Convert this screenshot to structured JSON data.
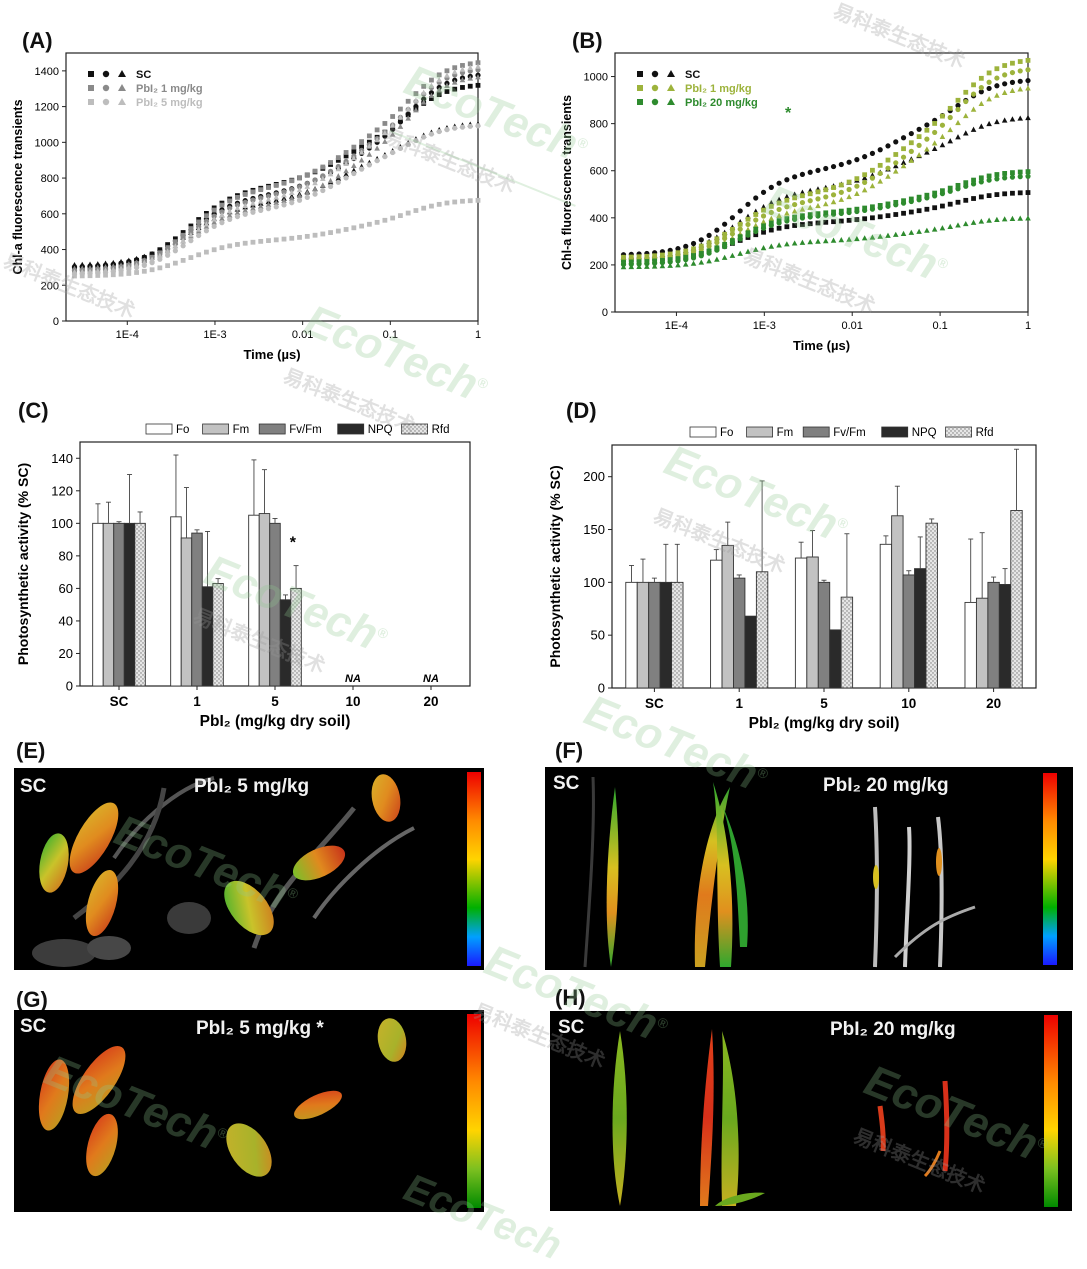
{
  "panels": {
    "A": "(A)",
    "B": "(B)",
    "C": "(C)",
    "D": "(D)",
    "E": "(E)",
    "F": "(F)",
    "G": "(G)",
    "H": "(H)"
  },
  "watermark": {
    "brand": "EcoTech",
    "reg": "®",
    "cn": "易科泰生态技术"
  },
  "chart_data": [
    {
      "id": "A",
      "type": "scatter",
      "xlabel": "Time (µs)",
      "ylabel": "Chl-a fluorescence transients",
      "xscale": "log",
      "xlim": [
        2e-05,
        1
      ],
      "ylim": [
        0,
        1500
      ],
      "xticks": [
        {
          "v": 0.0001,
          "l": "1E-4"
        },
        {
          "v": 0.001,
          "l": "1E-3"
        },
        {
          "v": 0.01,
          "l": "0.01"
        },
        {
          "v": 0.1,
          "l": "0.1"
        },
        {
          "v": 1,
          "l": "1"
        }
      ],
      "yticks": [
        0,
        200,
        400,
        600,
        800,
        1000,
        1200,
        1400
      ],
      "legend": {
        "placement": "top-left",
        "entries": [
          {
            "symbols": "■ ● ▲",
            "label": "SC",
            "color": "#111111"
          },
          {
            "symbols": "■ ● ▲",
            "label": "PbI₂ 1 mg/kg",
            "color": "#8a8a8a"
          },
          {
            "symbols": "■ ● ▲",
            "label": "PbI₂ 5 mg/kg",
            "color": "#bdbdbd"
          }
        ]
      },
      "series": [
        {
          "color": "#111111",
          "marker": "square",
          "o": 290,
          "j": 750,
          "i": 1060,
          "p": 1330
        },
        {
          "color": "#111111",
          "marker": "circle",
          "o": 300,
          "j": 700,
          "i": 1020,
          "p": 1390
        },
        {
          "color": "#111111",
          "marker": "triangle",
          "o": 310,
          "j": 660,
          "i": 950,
          "p": 1110
        },
        {
          "color": "#8a8a8a",
          "marker": "square",
          "o": 270,
          "j": 740,
          "i": 1100,
          "p": 1460
        },
        {
          "color": "#8a8a8a",
          "marker": "circle",
          "o": 280,
          "j": 690,
          "i": 1050,
          "p": 1420
        },
        {
          "color": "#8a8a8a",
          "marker": "triangle",
          "o": 290,
          "j": 640,
          "i": 990,
          "p": 1380
        },
        {
          "color": "#bdbdbd",
          "marker": "square",
          "o": 250,
          "j": 450,
          "i": 560,
          "p": 680
        },
        {
          "color": "#bdbdbd",
          "marker": "circle",
          "o": 260,
          "j": 620,
          "i": 950,
          "p": 1100
        },
        {
          "color": "#bdbdbd",
          "marker": "triangle",
          "o": 270,
          "j": 670,
          "i": 1040,
          "p": 1440
        }
      ]
    },
    {
      "id": "B",
      "type": "scatter",
      "xlabel": "Time (µs)",
      "ylabel": "Chl-a fluorescence transients",
      "xscale": "log",
      "xlim": [
        2e-05,
        1
      ],
      "ylim": [
        0,
        1100
      ],
      "xticks": [
        {
          "v": 0.0001,
          "l": "1E-4"
        },
        {
          "v": 0.001,
          "l": "1E-3"
        },
        {
          "v": 0.01,
          "l": "0.01"
        },
        {
          "v": 0.1,
          "l": "0.1"
        },
        {
          "v": 1,
          "l": "1"
        }
      ],
      "yticks": [
        0,
        200,
        400,
        600,
        800,
        1000
      ],
      "legend": {
        "placement": "top-left",
        "entries": [
          {
            "symbols": "■ ● ▲",
            "label": "SC",
            "color": "#111111"
          },
          {
            "symbols": "■ ● ▲",
            "label": "PbI₂ 1 mg/kg",
            "color": "#9db33c"
          },
          {
            "symbols": "■ ● ▲",
            "label": "PbI₂ 20 mg/kg",
            "color": "#2e8b2e"
          }
        ]
      },
      "star": "*",
      "series": [
        {
          "color": "#111111",
          "marker": "circle",
          "o": 240,
          "j": 600,
          "i": 820,
          "p": 990
        },
        {
          "color": "#111111",
          "marker": "triangle",
          "o": 230,
          "j": 520,
          "i": 700,
          "p": 830
        },
        {
          "color": "#111111",
          "marker": "square",
          "o": 220,
          "j": 380,
          "i": 440,
          "p": 510
        },
        {
          "color": "#9db33c",
          "marker": "square",
          "o": 230,
          "j": 500,
          "i": 800,
          "p": 1080
        },
        {
          "color": "#9db33c",
          "marker": "circle",
          "o": 220,
          "j": 470,
          "i": 760,
          "p": 1040
        },
        {
          "color": "#9db33c",
          "marker": "triangle",
          "o": 210,
          "j": 440,
          "i": 720,
          "p": 960
        },
        {
          "color": "#2e8b2e",
          "marker": "square",
          "o": 210,
          "j": 420,
          "i": 500,
          "p": 600
        },
        {
          "color": "#2e8b2e",
          "marker": "circle",
          "o": 200,
          "j": 410,
          "i": 490,
          "p": 580
        },
        {
          "color": "#2e8b2e",
          "marker": "triangle",
          "o": 190,
          "j": 300,
          "i": 350,
          "p": 400
        }
      ]
    },
    {
      "id": "C",
      "type": "bar",
      "xlabel": "PbI₂ (mg/kg dry soil)",
      "ylabel": "Photosynthetic activity (% SC)",
      "ylim": [
        0,
        150
      ],
      "yticks": [
        0,
        20,
        40,
        60,
        80,
        100,
        120,
        140
      ],
      "categories": [
        "SC",
        "1",
        "5",
        "10",
        "20"
      ],
      "series": [
        {
          "name": "Fo",
          "fill": "#ffffff",
          "values": [
            100,
            104,
            105,
            null,
            null
          ],
          "err": [
            12,
            38,
            34,
            null,
            null
          ]
        },
        {
          "name": "Fm",
          "fill": "#c2c2c2",
          "values": [
            100,
            91,
            106,
            null,
            null
          ],
          "err": [
            13,
            31,
            27,
            null,
            null
          ]
        },
        {
          "name": "Fv/Fm",
          "fill": "#808080",
          "values": [
            100,
            94,
            100,
            null,
            null
          ],
          "err": [
            1,
            2,
            3,
            null,
            null
          ]
        },
        {
          "name": "NPQ",
          "fill": "#2a2a2a",
          "values": [
            100,
            61,
            53,
            null,
            null
          ],
          "err": [
            30,
            34,
            3,
            null,
            null
          ]
        },
        {
          "name": "Rfd",
          "fill": "#e2e2e2",
          "hatch": true,
          "values": [
            100,
            63,
            60,
            null,
            null
          ],
          "err": [
            7,
            3,
            14,
            null,
            null
          ]
        }
      ],
      "annotations": [
        {
          "text": "*",
          "category": "5"
        },
        {
          "text": "NA",
          "category": "10"
        },
        {
          "text": "NA",
          "category": "20"
        }
      ]
    },
    {
      "id": "D",
      "type": "bar",
      "xlabel": "PbI₂ (mg/kg dry soil)",
      "ylabel": "Photosynthetic activity (% SC)",
      "ylim": [
        0,
        230
      ],
      "yticks": [
        0,
        50,
        100,
        150,
        200
      ],
      "categories": [
        "SC",
        "1",
        "5",
        "10",
        "20"
      ],
      "series": [
        {
          "name": "Fo",
          "fill": "#ffffff",
          "values": [
            100,
            121,
            123,
            136,
            81
          ],
          "err": [
            16,
            10,
            15,
            8,
            60
          ]
        },
        {
          "name": "Fm",
          "fill": "#c2c2c2",
          "values": [
            100,
            135,
            124,
            163,
            85
          ],
          "err": [
            22,
            22,
            25,
            28,
            62
          ]
        },
        {
          "name": "Fv/Fm",
          "fill": "#808080",
          "values": [
            100,
            104,
            100,
            107,
            100
          ],
          "err": [
            4,
            3,
            2,
            4,
            5
          ]
        },
        {
          "name": "NPQ",
          "fill": "#2a2a2a",
          "values": [
            100,
            68,
            55,
            113,
            98
          ],
          "err": [
            36,
            0,
            0,
            30,
            15
          ]
        },
        {
          "name": "Rfd",
          "fill": "#e2e2e2",
          "hatch": true,
          "values": [
            100,
            110,
            86,
            156,
            168
          ],
          "err": [
            36,
            86,
            60,
            4,
            58
          ]
        }
      ]
    }
  ],
  "images": {
    "E": {
      "left": "SC",
      "right": "PbI₂ 5 mg/kg"
    },
    "F": {
      "left": "SC",
      "right": "PbI₂ 20 mg/kg"
    },
    "G": {
      "left": "SC",
      "right": "PbI₂ 5 mg/kg *"
    },
    "H": {
      "left": "SC",
      "right": "PbI₂ 20 mg/kg"
    }
  }
}
